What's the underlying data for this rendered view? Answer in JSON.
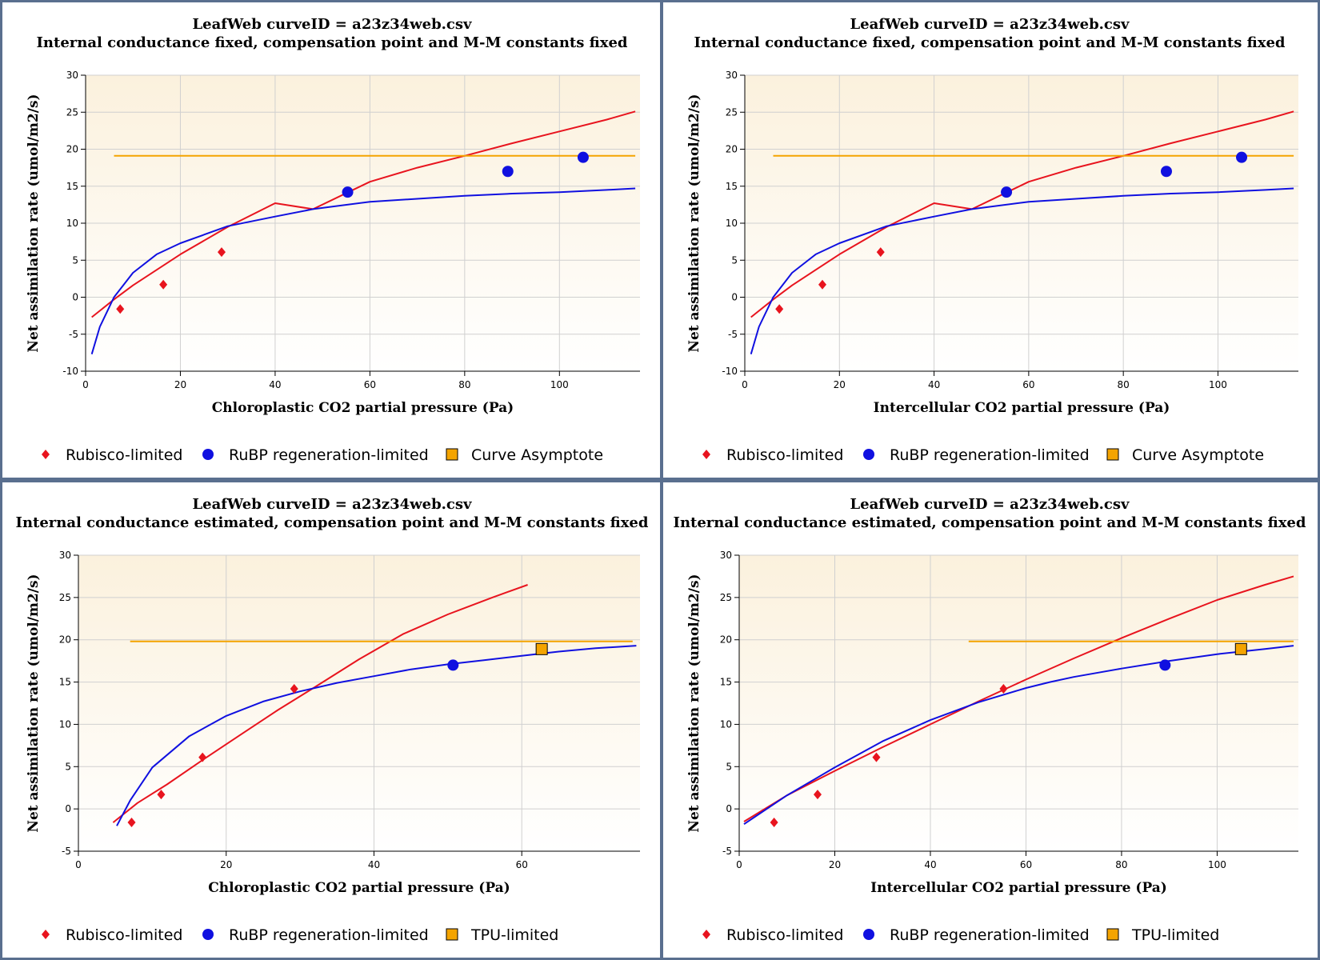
{
  "colors": {
    "rubisco": "#e8141e",
    "rubp": "#1010e0",
    "asymptote": "#f4a400",
    "tpu_fill": "#f4a400",
    "plot_bg_top": "#fbf1dd",
    "plot_bg_bottom": "#ffffff",
    "grid": "#d0d0d0",
    "border": "#5a6f8f"
  },
  "panels": [
    {
      "title1": "LeafWeb curveID = a23z34web.csv",
      "title2": "Internal conductance fixed, compensation point and M-M constants fixed",
      "legend": [
        "Rubisco-limited",
        "RuBP regeneration-limited",
        "Curve Asymptote"
      ]
    },
    {
      "title1": "LeafWeb curveID = a23z34web.csv",
      "title2": "Internal conductance fixed, compensation point and M-M constants fixed",
      "legend": [
        "Rubisco-limited",
        "RuBP regeneration-limited",
        "Curve Asymptote"
      ]
    },
    {
      "title1": "LeafWeb curveID = a23z34web.csv",
      "title2": "Internal conductance estimated, compensation point and M-M constants fixed",
      "legend": [
        "Rubisco-limited",
        "RuBP regeneration-limited",
        "TPU-limited"
      ]
    },
    {
      "title1": "LeafWeb curveID = a23z34web.csv",
      "title2": "Internal conductance estimated, compensation point and M-M constants fixed",
      "legend": [
        "Rubisco-limited",
        "RuBP regeneration-limited",
        "TPU-limited"
      ]
    }
  ],
  "chart_data": [
    {
      "type": "scatter",
      "title": "LeafWeb curveID = a23z34web.csv — Internal conductance fixed, compensation point and M-M constants fixed",
      "xlabel": "Chloroplastic CO2 partial pressure (Pa)",
      "ylabel": "Net assimilation rate (umol/m2/s)",
      "xlim": [
        0,
        117
      ],
      "ylim": [
        -10,
        30
      ],
      "x_ticks": [
        0,
        20,
        40,
        60,
        80,
        100
      ],
      "y_ticks": [
        -10,
        -5,
        0,
        5,
        10,
        15,
        20,
        25,
        30
      ],
      "grid": true,
      "legend_position": "bottom",
      "points": [
        {
          "series": "Rubisco-limited",
          "marker": "diamond",
          "x": 7.3,
          "y": -1.6
        },
        {
          "series": "Rubisco-limited",
          "marker": "diamond",
          "x": 16.4,
          "y": 1.7
        },
        {
          "series": "Rubisco-limited",
          "marker": "diamond",
          "x": 28.7,
          "y": 6.1
        },
        {
          "series": "RuBP regeneration-limited",
          "marker": "circle",
          "x": 55.3,
          "y": 14.2
        },
        {
          "series": "RuBP regeneration-limited",
          "marker": "circle",
          "x": 89.1,
          "y": 17.0
        },
        {
          "series": "RuBP regeneration-limited",
          "marker": "circle",
          "x": 105.0,
          "y": 18.9
        }
      ],
      "curves": [
        {
          "series": "Rubisco-limited",
          "x": [
            1.3,
            6.0,
            10.0,
            20.0,
            30.0,
            40.0,
            48.0,
            60.0,
            70.0,
            80.0,
            90.0,
            100.0,
            110.0,
            116.0
          ],
          "y": [
            -2.7,
            -0.3,
            1.6,
            5.8,
            9.5,
            12.7,
            11.9,
            15.6,
            17.5,
            19.1,
            20.8,
            22.4,
            24.0,
            25.1
          ]
        },
        {
          "series": "RuBP regeneration-limited",
          "x": [
            1.3,
            3.0,
            6.0,
            10.0,
            15.0,
            20.0,
            30.0,
            40.0,
            48.0,
            60.0,
            70.0,
            80.0,
            90.0,
            100.0,
            110.0,
            116.0
          ],
          "y": [
            -7.7,
            -4.0,
            0.0,
            3.3,
            5.8,
            7.3,
            9.6,
            10.9,
            11.9,
            12.9,
            13.3,
            13.7,
            14.0,
            14.2,
            14.5,
            14.7
          ]
        },
        {
          "series": "Curve Asymptote",
          "x": [
            6.0,
            116.0
          ],
          "y": [
            19.1,
            19.1
          ]
        }
      ]
    },
    {
      "type": "scatter",
      "title": "LeafWeb curveID = a23z34web.csv — Internal conductance fixed, compensation point and M-M constants fixed",
      "xlabel": "Intercellular CO2 partial pressure (Pa)",
      "ylabel": "Net assimilation rate (umol/m2/s)",
      "xlim": [
        0,
        117
      ],
      "ylim": [
        -10,
        30
      ],
      "x_ticks": [
        0,
        20,
        40,
        60,
        80,
        100
      ],
      "y_ticks": [
        -10,
        -5,
        0,
        5,
        10,
        15,
        20,
        25,
        30
      ],
      "grid": true,
      "legend_position": "bottom",
      "points": [
        {
          "series": "Rubisco-limited",
          "marker": "diamond",
          "x": 7.3,
          "y": -1.6
        },
        {
          "series": "Rubisco-limited",
          "marker": "diamond",
          "x": 16.4,
          "y": 1.7
        },
        {
          "series": "Rubisco-limited",
          "marker": "diamond",
          "x": 28.7,
          "y": 6.1
        },
        {
          "series": "RuBP regeneration-limited",
          "marker": "circle",
          "x": 55.3,
          "y": 14.2
        },
        {
          "series": "RuBP regeneration-limited",
          "marker": "circle",
          "x": 89.1,
          "y": 17.0
        },
        {
          "series": "RuBP regeneration-limited",
          "marker": "circle",
          "x": 105.0,
          "y": 18.9
        }
      ],
      "curves": [
        {
          "series": "Rubisco-limited",
          "x": [
            1.3,
            6.0,
            10.0,
            20.0,
            30.0,
            40.0,
            48.0,
            60.0,
            70.0,
            80.0,
            90.0,
            100.0,
            110.0,
            116.0
          ],
          "y": [
            -2.7,
            -0.3,
            1.6,
            5.8,
            9.5,
            12.7,
            11.9,
            15.6,
            17.5,
            19.1,
            20.8,
            22.4,
            24.0,
            25.1
          ]
        },
        {
          "series": "RuBP regeneration-limited",
          "x": [
            1.3,
            3.0,
            6.0,
            10.0,
            15.0,
            20.0,
            30.0,
            40.0,
            48.0,
            60.0,
            70.0,
            80.0,
            90.0,
            100.0,
            110.0,
            116.0
          ],
          "y": [
            -7.7,
            -4.0,
            0.0,
            3.3,
            5.8,
            7.3,
            9.6,
            10.9,
            11.9,
            12.9,
            13.3,
            13.7,
            14.0,
            14.2,
            14.5,
            14.7
          ]
        },
        {
          "series": "Curve Asymptote",
          "x": [
            6.0,
            116.0
          ],
          "y": [
            19.1,
            19.1
          ]
        }
      ]
    },
    {
      "type": "scatter",
      "title": "LeafWeb curveID = a23z34web.csv — Internal conductance estimated, compensation point and M-M constants fixed",
      "xlabel": "Chloroplastic CO2 partial pressure (Pa)",
      "ylabel": "Net assimilation rate (umol/m2/s)",
      "xlim": [
        0,
        76
      ],
      "ylim": [
        -5,
        30
      ],
      "x_ticks": [
        0,
        20,
        40,
        60
      ],
      "y_ticks": [
        -5,
        0,
        5,
        10,
        15,
        20,
        25,
        30
      ],
      "grid": true,
      "legend_position": "bottom",
      "points": [
        {
          "series": "Rubisco-limited",
          "marker": "diamond",
          "x": 7.2,
          "y": -1.6
        },
        {
          "series": "Rubisco-limited",
          "marker": "diamond",
          "x": 11.2,
          "y": 1.7
        },
        {
          "series": "Rubisco-limited",
          "marker": "diamond",
          "x": 16.8,
          "y": 6.1
        },
        {
          "series": "Rubisco-limited",
          "marker": "diamond",
          "x": 29.2,
          "y": 14.2
        },
        {
          "series": "RuBP regeneration-limited",
          "marker": "circle",
          "x": 50.7,
          "y": 17.0
        },
        {
          "series": "TPU-limited",
          "marker": "square",
          "x": 62.7,
          "y": 18.9
        }
      ],
      "curves": [
        {
          "series": "Rubisco-limited",
          "x": [
            4.7,
            8.0,
            12.0,
            17.0,
            22.0,
            27.0,
            32.0,
            38.0,
            44.0,
            50.0,
            56.0,
            60.8
          ],
          "y": [
            -1.6,
            0.7,
            2.9,
            5.9,
            8.8,
            11.7,
            14.4,
            17.7,
            20.7,
            23.0,
            25.0,
            26.5
          ]
        },
        {
          "series": "RuBP regeneration-limited",
          "x": [
            5.2,
            7.0,
            10.0,
            15.0,
            20.0,
            25.0,
            30.0,
            35.0,
            40.0,
            45.0,
            50.0,
            55.0,
            60.0,
            65.0,
            70.0,
            75.5
          ],
          "y": [
            -2.0,
            1.0,
            4.9,
            8.6,
            11.0,
            12.7,
            13.9,
            14.9,
            15.7,
            16.5,
            17.1,
            17.6,
            18.1,
            18.6,
            19.0,
            19.3
          ]
        },
        {
          "series": "Curve Asymptote",
          "x": [
            7.0,
            75.0
          ],
          "y": [
            19.8,
            19.8
          ]
        }
      ]
    },
    {
      "type": "scatter",
      "title": "LeafWeb curveID = a23z34web.csv — Internal conductance estimated, compensation point and M-M constants fixed",
      "xlabel": "Intercellular CO2 partial pressure (Pa)",
      "ylabel": "Net assimilation rate (umol/m2/s)",
      "xlim": [
        0,
        117
      ],
      "ylim": [
        -5,
        30
      ],
      "x_ticks": [
        0,
        20,
        40,
        60,
        80,
        100
      ],
      "y_ticks": [
        -5,
        0,
        5,
        10,
        15,
        20,
        25,
        30
      ],
      "grid": true,
      "legend_position": "bottom",
      "points": [
        {
          "series": "Rubisco-limited",
          "marker": "diamond",
          "x": 7.3,
          "y": -1.6
        },
        {
          "series": "Rubisco-limited",
          "marker": "diamond",
          "x": 16.4,
          "y": 1.7
        },
        {
          "series": "Rubisco-limited",
          "marker": "diamond",
          "x": 28.7,
          "y": 6.1
        },
        {
          "series": "Rubisco-limited",
          "marker": "diamond",
          "x": 55.3,
          "y": 14.2
        },
        {
          "series": "RuBP regeneration-limited",
          "marker": "circle",
          "x": 89.1,
          "y": 17.0
        },
        {
          "series": "TPU-limited",
          "marker": "square",
          "x": 105.0,
          "y": 18.9
        }
      ],
      "curves": [
        {
          "series": "Rubisco-limited",
          "x": [
            1.0,
            10.0,
            20.0,
            30.0,
            40.0,
            50.0,
            60.0,
            70.0,
            80.0,
            90.0,
            100.0,
            110.0,
            116.0
          ],
          "y": [
            -1.5,
            1.6,
            4.5,
            7.3,
            10.0,
            12.7,
            15.3,
            17.8,
            20.2,
            22.5,
            24.7,
            26.5,
            27.5
          ]
        },
        {
          "series": "RuBP regeneration-limited",
          "x": [
            1.0,
            10.0,
            20.0,
            30.0,
            40.0,
            50.0,
            60.0,
            65.0,
            70.0,
            80.0,
            90.0,
            100.0,
            110.0,
            116.0
          ],
          "y": [
            -1.8,
            1.6,
            4.9,
            8.0,
            10.5,
            12.6,
            14.3,
            15.0,
            15.6,
            16.6,
            17.5,
            18.3,
            18.9,
            19.3
          ]
        },
        {
          "series": "Curve Asymptote",
          "x": [
            48.0,
            116.0
          ],
          "y": [
            19.8,
            19.8
          ]
        }
      ]
    }
  ]
}
